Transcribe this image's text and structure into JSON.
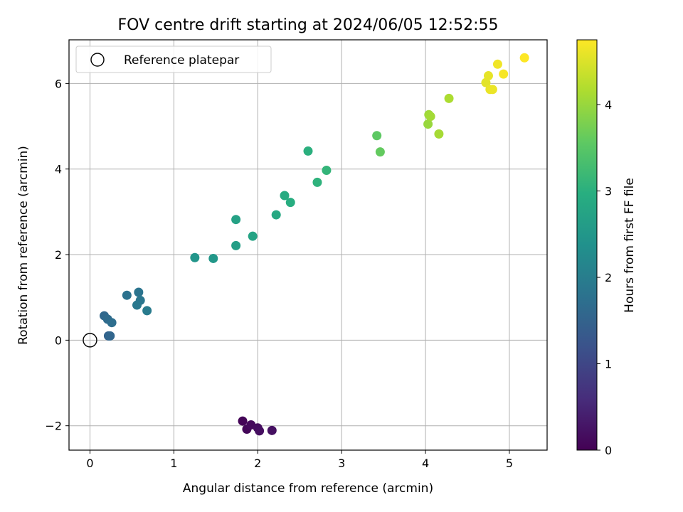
{
  "chart_data": {
    "type": "scatter",
    "title": "FOV centre drift starting at 2024/06/05 12:52:55",
    "xlabel": "Angular distance from reference (arcmin)",
    "ylabel": "Rotation from reference (arcmin)",
    "xlim": [
      -0.25,
      5.45
    ],
    "ylim": [
      -2.57,
      7.02
    ],
    "xticks": [
      0,
      1,
      2,
      3,
      4,
      5
    ],
    "yticks": [
      -2,
      0,
      2,
      4,
      6
    ],
    "xtick_labels": [
      "0",
      "1",
      "2",
      "3",
      "4",
      "5"
    ],
    "ytick_labels": [
      "−2",
      "0",
      "2",
      "4",
      "6"
    ],
    "grid": true,
    "legend": {
      "placement": "top-left",
      "entries": [
        "Reference platepar"
      ]
    },
    "reference_point": {
      "x": 0,
      "y": 0,
      "marker": "open-circle"
    },
    "colorbar": {
      "label": "Hours from first FF file",
      "colormap": "viridis",
      "range": [
        0,
        4.75
      ],
      "ticks": [
        0,
        1,
        2,
        3,
        4
      ],
      "tick_labels": [
        "0",
        "1",
        "2",
        "3",
        "4"
      ]
    },
    "points": [
      {
        "x": 1.82,
        "y": -1.89,
        "c": 0.05
      },
      {
        "x": 1.87,
        "y": -2.08,
        "c": 0.08
      },
      {
        "x": 1.92,
        "y": -1.98,
        "c": 0.12
      },
      {
        "x": 2.0,
        "y": -2.05,
        "c": 0.15
      },
      {
        "x": 2.02,
        "y": -2.12,
        "c": 0.18
      },
      {
        "x": 2.17,
        "y": -2.11,
        "c": 0.2
      },
      {
        "x": 0.22,
        "y": 0.1,
        "c": 1.5
      },
      {
        "x": 0.24,
        "y": 0.1,
        "c": 1.55
      },
      {
        "x": 0.17,
        "y": 0.57,
        "c": 1.6
      },
      {
        "x": 0.21,
        "y": 0.49,
        "c": 1.65
      },
      {
        "x": 0.26,
        "y": 0.41,
        "c": 1.7
      },
      {
        "x": 0.44,
        "y": 1.05,
        "c": 1.78
      },
      {
        "x": 0.58,
        "y": 1.12,
        "c": 1.82
      },
      {
        "x": 0.6,
        "y": 0.93,
        "c": 1.86
      },
      {
        "x": 0.56,
        "y": 0.82,
        "c": 1.9
      },
      {
        "x": 0.68,
        "y": 0.69,
        "c": 1.95
      },
      {
        "x": 1.25,
        "y": 1.93,
        "c": 2.45
      },
      {
        "x": 1.47,
        "y": 1.91,
        "c": 2.5
      },
      {
        "x": 1.74,
        "y": 2.21,
        "c": 2.65
      },
      {
        "x": 1.74,
        "y": 2.82,
        "c": 2.7
      },
      {
        "x": 1.94,
        "y": 2.43,
        "c": 2.75
      },
      {
        "x": 2.22,
        "y": 2.93,
        "c": 2.85
      },
      {
        "x": 2.32,
        "y": 3.38,
        "c": 2.9
      },
      {
        "x": 2.39,
        "y": 3.22,
        "c": 2.95
      },
      {
        "x": 2.6,
        "y": 4.42,
        "c": 3.0
      },
      {
        "x": 2.71,
        "y": 3.69,
        "c": 3.05
      },
      {
        "x": 2.82,
        "y": 3.97,
        "c": 3.1
      },
      {
        "x": 3.42,
        "y": 4.78,
        "c": 3.55
      },
      {
        "x": 3.46,
        "y": 4.4,
        "c": 3.6
      },
      {
        "x": 4.03,
        "y": 5.05,
        "c": 4.0
      },
      {
        "x": 4.04,
        "y": 5.27,
        "c": 4.05
      },
      {
        "x": 4.06,
        "y": 5.23,
        "c": 4.08
      },
      {
        "x": 4.16,
        "y": 4.82,
        "c": 4.1
      },
      {
        "x": 4.28,
        "y": 5.65,
        "c": 4.15
      },
      {
        "x": 4.72,
        "y": 6.02,
        "c": 4.55
      },
      {
        "x": 4.75,
        "y": 6.18,
        "c": 4.58
      },
      {
        "x": 4.77,
        "y": 5.86,
        "c": 4.6
      },
      {
        "x": 4.8,
        "y": 5.86,
        "c": 4.62
      },
      {
        "x": 4.86,
        "y": 6.45,
        "c": 4.65
      },
      {
        "x": 4.93,
        "y": 6.22,
        "c": 4.7
      },
      {
        "x": 5.18,
        "y": 6.6,
        "c": 4.75
      }
    ]
  }
}
